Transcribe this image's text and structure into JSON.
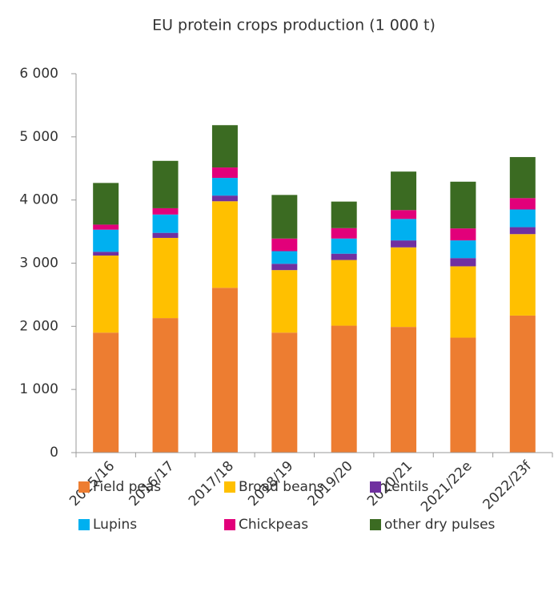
{
  "chart_data": {
    "type": "stacked-bar",
    "title": "EU protein crops production (1 000 t)",
    "categories": [
      "2015/16",
      "2016/17",
      "2017/18",
      "2018/19",
      "2019/20",
      "2020/21",
      "2021/22e",
      "2022/23f"
    ],
    "series": [
      {
        "name": "Field peas",
        "color": "#ed7d31",
        "values": [
          1900,
          2130,
          2610,
          1900,
          2010,
          1990,
          1820,
          2170
        ]
      },
      {
        "name": "Broad beans",
        "color": "#ffc000",
        "values": [
          1220,
          1270,
          1370,
          990,
          1040,
          1260,
          1130,
          1290
        ]
      },
      {
        "name": "Lentils",
        "color": "#7030a0",
        "values": [
          60,
          80,
          90,
          100,
          100,
          110,
          130,
          110
        ]
      },
      {
        "name": "Lupins",
        "color": "#00b0f0",
        "values": [
          350,
          290,
          280,
          200,
          240,
          340,
          280,
          280
        ]
      },
      {
        "name": "Chickpeas",
        "color": "#e2007a",
        "values": [
          80,
          100,
          165,
          200,
          165,
          140,
          190,
          180
        ]
      },
      {
        "name": "other dry pulses",
        "color": "#3b6b22",
        "values": [
          660,
          750,
          670,
          690,
          420,
          610,
          740,
          650
        ]
      }
    ],
    "ylim": [
      0,
      6000
    ],
    "yticks": [
      0,
      {
        "value": 1000,
        "label": "1 000"
      },
      {
        "value": 2000,
        "label": "2 000"
      },
      {
        "value": 3000,
        "label": "3 000"
      },
      {
        "value": 4000,
        "label": "4 000"
      },
      {
        "value": 5000,
        "label": "5 000"
      },
      {
        "value": 6000,
        "label": "6 000"
      }
    ],
    "grid": false
  }
}
